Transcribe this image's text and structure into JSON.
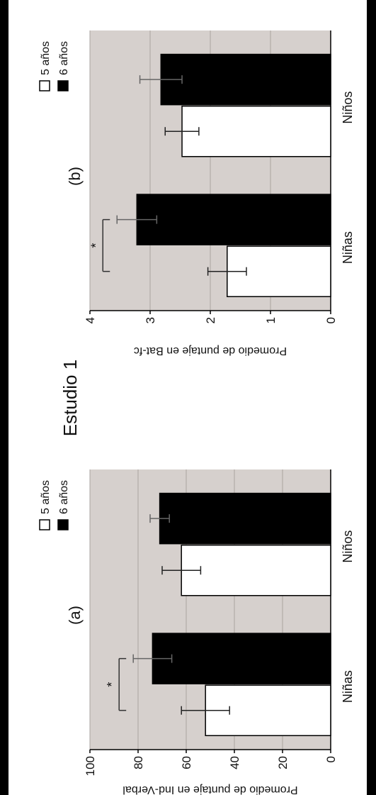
{
  "figure_title": "Estudio 1",
  "colors": {
    "panel_bg": "#d6d0cd",
    "bar_5": "#ffffff",
    "bar_6": "#000000",
    "grid": "#a9a3a0"
  },
  "chart_data": [
    {
      "type": "bar",
      "label": "(a)",
      "categories": [
        "Niñas",
        "Niños"
      ],
      "ylabel": "Promedio de puntaje en Ind-Verbal",
      "ylim": [
        0,
        100
      ],
      "yticks": [
        0,
        20,
        40,
        60,
        80,
        100
      ],
      "grid": true,
      "legend_position": "top-right",
      "series": [
        {
          "name": "5 años",
          "values": [
            52,
            62
          ],
          "errors": [
            10,
            8
          ]
        },
        {
          "name": "6 años",
          "values": [
            74,
            71
          ],
          "errors": [
            8,
            4
          ]
        }
      ],
      "annotations": [
        {
          "text": "*",
          "category": "Niñas"
        }
      ]
    },
    {
      "type": "bar",
      "label": "(b)",
      "categories": [
        "Niñas",
        "Niños"
      ],
      "ylabel": "Promedio de puntaje en Bat-fc",
      "ylim": [
        0,
        4
      ],
      "yticks": [
        0,
        1,
        2,
        3,
        4
      ],
      "grid": true,
      "legend_position": "top-right",
      "series": [
        {
          "name": "5 años",
          "values": [
            1.72,
            2.47
          ],
          "errors": [
            0.32,
            0.28
          ]
        },
        {
          "name": "6 años",
          "values": [
            3.22,
            2.82
          ],
          "errors": [
            0.33,
            0.35
          ]
        }
      ],
      "annotations": [
        {
          "text": "*",
          "category": "Niñas"
        }
      ]
    }
  ]
}
